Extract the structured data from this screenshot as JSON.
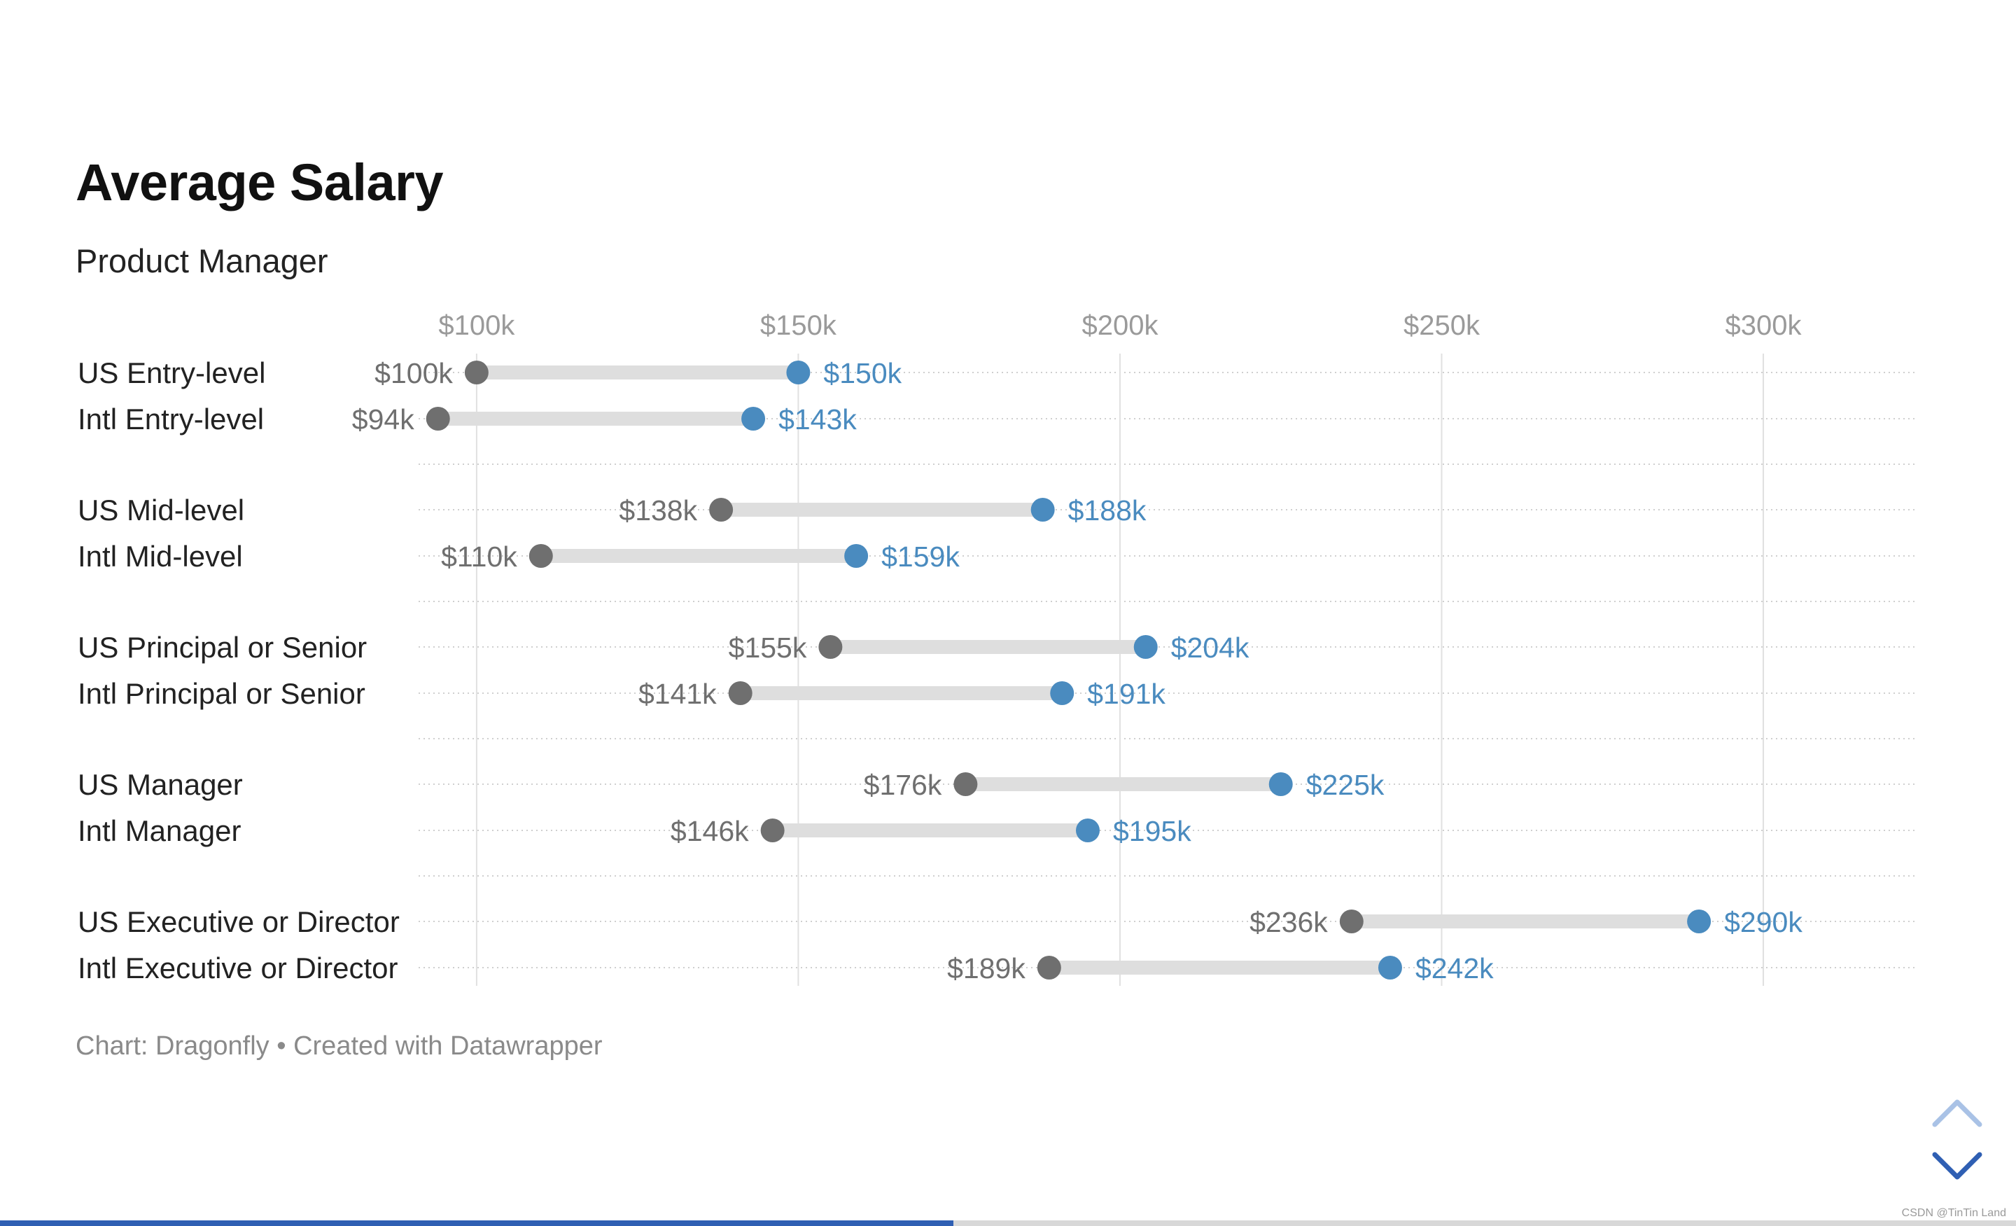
{
  "chart_data": {
    "type": "dot",
    "title": "Average Salary",
    "subtitle": "Product Manager",
    "notes": "Chart: Dragonfly • Created with Datawrapper",
    "x_ticks": [
      "$100k",
      "$150k",
      "$200k",
      "$250k",
      "$300k"
    ],
    "x_tick_values": [
      100,
      150,
      200,
      250,
      300
    ],
    "xlim": [
      91.2,
      323.5
    ],
    "grid": true,
    "colors": {
      "low": "#6f6f6f",
      "high": "#4a8bbf",
      "range": "#dedede",
      "grid": "#e0e0e0"
    },
    "groups": [
      {
        "rows": [
          {
            "label": "US Entry-level",
            "low": 100,
            "low_label": "$100k",
            "high": 150,
            "high_label": "$150k"
          },
          {
            "label": "Intl Entry-level",
            "low": 94,
            "low_label": "$94k",
            "high": 143,
            "high_label": "$143k"
          }
        ]
      },
      {
        "rows": [
          {
            "label": "US Mid-level",
            "low": 138,
            "low_label": "$138k",
            "high": 188,
            "high_label": "$188k"
          },
          {
            "label": "Intl Mid-level",
            "low": 110,
            "low_label": "$110k",
            "high": 159,
            "high_label": "$159k"
          }
        ]
      },
      {
        "rows": [
          {
            "label": "US Principal or Senior",
            "low": 155,
            "low_label": "$155k",
            "high": 204,
            "high_label": "$204k"
          },
          {
            "label": "Intl Principal or Senior",
            "low": 141,
            "low_label": "$141k",
            "high": 191,
            "high_label": "$191k"
          }
        ]
      },
      {
        "rows": [
          {
            "label": "US Manager",
            "low": 176,
            "low_label": "$176k",
            "high": 225,
            "high_label": "$225k"
          },
          {
            "label": "Intl Manager",
            "low": 146,
            "low_label": "$146k",
            "high": 195,
            "high_label": "$195k"
          }
        ]
      },
      {
        "rows": [
          {
            "label": "US Executive or Director",
            "low": 236,
            "low_label": "$236k",
            "high": 290,
            "high_label": "$290k"
          },
          {
            "label": "Intl Executive or Director",
            "low": 189,
            "low_label": "$189k",
            "high": 242,
            "high_label": "$242k"
          }
        ]
      }
    ]
  },
  "controls": {
    "scroll_up_icon": "chevron-up-icon",
    "scroll_down_icon": "chevron-down-icon"
  },
  "progress": {
    "fraction": 0.473
  },
  "watermark": "CSDN @TinTin Land"
}
